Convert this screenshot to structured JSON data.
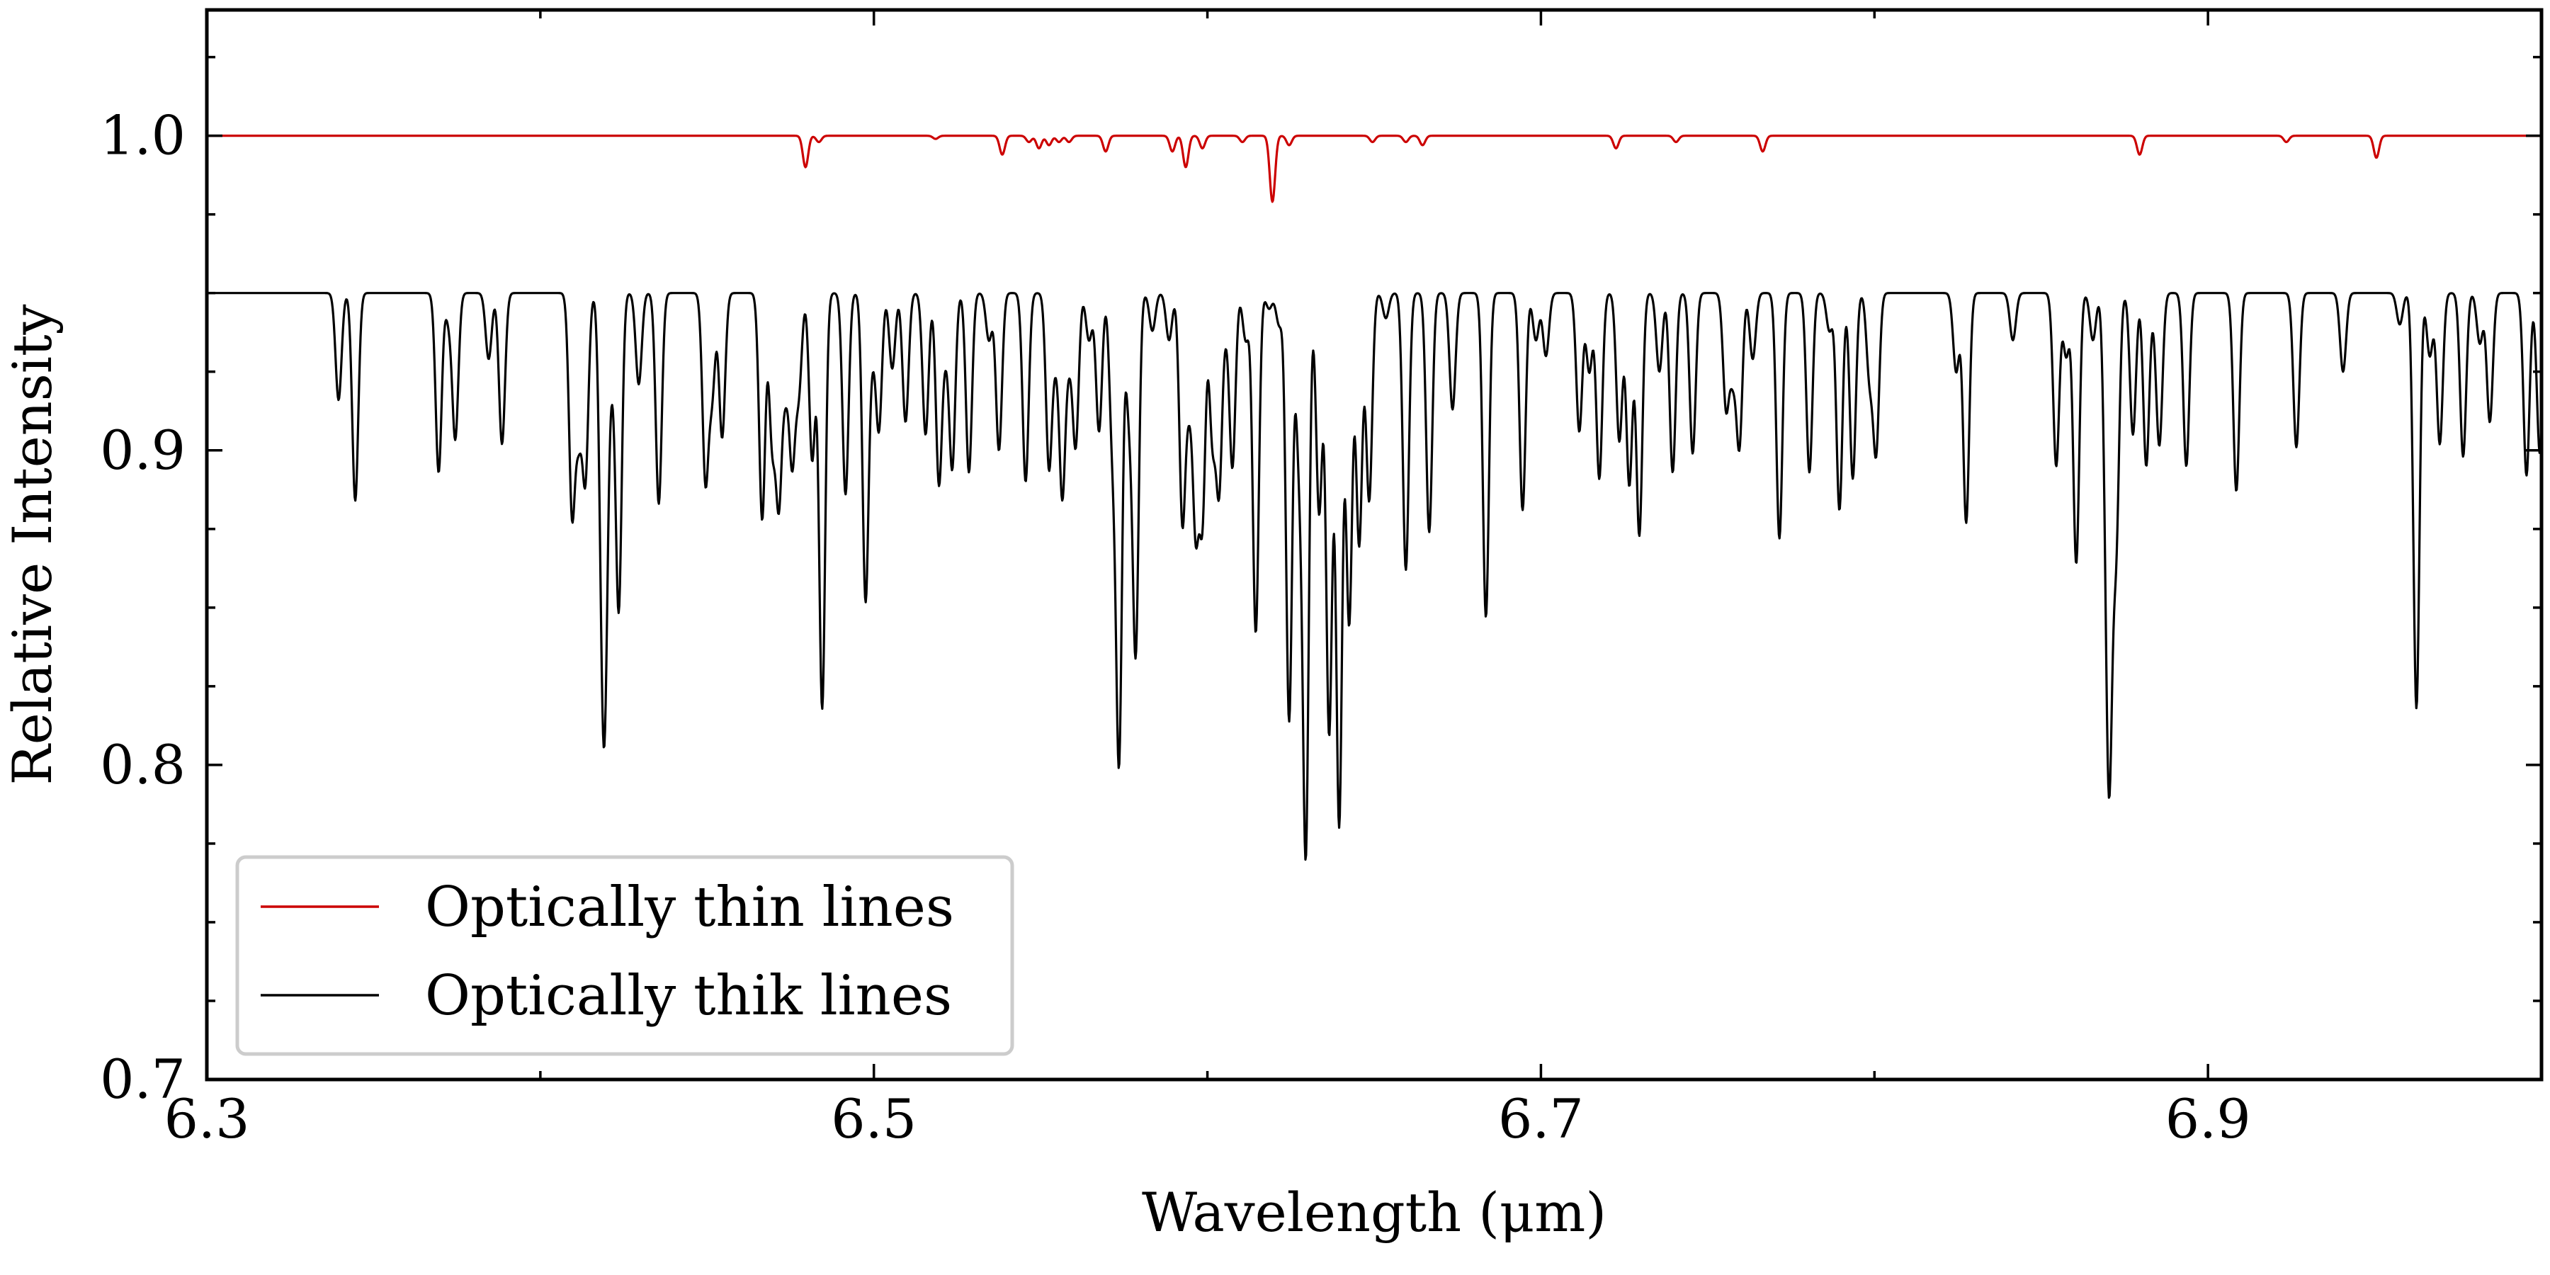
{
  "chart_data": {
    "type": "line",
    "title": "",
    "xlabel": "Wavelength (μm)",
    "ylabel": "Relative Intensity",
    "xlim": [
      6.3,
      7.0
    ],
    "ylim": [
      0.7,
      1.04
    ],
    "xticks": [
      {
        "value": 6.3,
        "label": "6.3"
      },
      {
        "value": 6.5,
        "label": "6.5"
      },
      {
        "value": 6.7,
        "label": "6.7"
      },
      {
        "value": 6.9,
        "label": "6.9"
      }
    ],
    "yticks": [
      {
        "value": 0.7,
        "label": "0.7"
      },
      {
        "value": 0.8,
        "label": "0.8"
      },
      {
        "value": 0.9,
        "label": "0.9"
      },
      {
        "value": 1.0,
        "label": "1.0"
      }
    ],
    "legend_position": "lower-left",
    "series": [
      {
        "name": "Optically thin lines",
        "color": "#cc0000",
        "baseline": 1.0,
        "line_width": 0.0008,
        "lines": [
          [
            6.4795,
            0.99
          ],
          [
            6.4835,
            0.998
          ],
          [
            6.5185,
            0.999
          ],
          [
            6.5385,
            0.994
          ],
          [
            6.5465,
            0.998
          ],
          [
            6.5495,
            0.996
          ],
          [
            6.5525,
            0.997
          ],
          [
            6.5555,
            0.998
          ],
          [
            6.5585,
            0.998
          ],
          [
            6.5695,
            0.995
          ],
          [
            6.5895,
            0.995
          ],
          [
            6.5935,
            0.99
          ],
          [
            6.5985,
            0.996
          ],
          [
            6.6105,
            0.998
          ],
          [
            6.6195,
            0.979
          ],
          [
            6.6245,
            0.997
          ],
          [
            6.6495,
            0.998
          ],
          [
            6.6595,
            0.998
          ],
          [
            6.6645,
            0.997
          ],
          [
            6.7225,
            0.996
          ],
          [
            6.7405,
            0.998
          ],
          [
            6.7665,
            0.995
          ],
          [
            6.8795,
            0.994
          ],
          [
            6.9235,
            0.998
          ],
          [
            6.9505,
            0.993
          ]
        ]
      },
      {
        "name": "Optically thik lines",
        "color": "#000000",
        "baseline": 0.95,
        "line_width": 0.0009,
        "lines": [
          [
            6.3395,
            0.916
          ],
          [
            6.3445,
            0.884
          ],
          [
            6.3695,
            0.893
          ],
          [
            6.3725,
            0.942
          ],
          [
            6.3745,
            0.904
          ],
          [
            6.3845,
            0.929
          ],
          [
            6.3885,
            0.902
          ],
          [
            6.4095,
            0.881
          ],
          [
            6.4115,
            0.909
          ],
          [
            6.4135,
            0.892
          ],
          [
            6.4185,
            0.874
          ],
          [
            6.4195,
            0.858
          ],
          [
            6.4215,
            0.931
          ],
          [
            6.4235,
            0.85
          ],
          [
            6.4295,
            0.921
          ],
          [
            6.4355,
            0.883
          ],
          [
            6.4495,
            0.891
          ],
          [
            6.4515,
            0.919
          ],
          [
            6.4545,
            0.904
          ],
          [
            6.4665,
            0.878
          ],
          [
            6.4695,
            0.904
          ],
          [
            6.4715,
            0.886
          ],
          [
            6.4735,
            0.923
          ],
          [
            6.4755,
            0.898
          ],
          [
            6.4775,
            0.92
          ],
          [
            6.4815,
            0.897
          ],
          [
            6.4845,
            0.818
          ],
          [
            6.4915,
            0.886
          ],
          [
            6.4975,
            0.853
          ],
          [
            6.4995,
            0.935
          ],
          [
            6.5015,
            0.907
          ],
          [
            6.5055,
            0.926
          ],
          [
            6.5095,
            0.909
          ],
          [
            6.5155,
            0.905
          ],
          [
            6.5195,
            0.89
          ],
          [
            6.5215,
            0.935
          ],
          [
            6.5235,
            0.895
          ],
          [
            6.5285,
            0.893
          ],
          [
            6.5345,
            0.935
          ],
          [
            6.5375,
            0.9
          ],
          [
            6.5455,
            0.89
          ],
          [
            6.5525,
            0.895
          ],
          [
            6.5545,
            0.933
          ],
          [
            6.5565,
            0.887
          ],
          [
            6.5585,
            0.932
          ],
          [
            6.5605,
            0.902
          ],
          [
            6.5645,
            0.935
          ],
          [
            6.5675,
            0.906
          ],
          [
            6.5715,
            0.905
          ],
          [
            6.5735,
            0.803
          ],
          [
            6.5765,
            0.915
          ],
          [
            6.5785,
            0.837
          ],
          [
            6.5835,
            0.938
          ],
          [
            6.5885,
            0.935
          ],
          [
            6.5925,
            0.878
          ],
          [
            6.5945,
            0.92
          ],
          [
            6.5965,
            0.878
          ],
          [
            6.5985,
            0.88
          ],
          [
            6.6015,
            0.905
          ],
          [
            6.6035,
            0.889
          ],
          [
            6.6055,
            0.942
          ],
          [
            6.6075,
            0.895
          ],
          [
            6.6115,
            0.935
          ],
          [
            6.6145,
            0.842
          ],
          [
            6.6185,
            0.945
          ],
          [
            6.6215,
            0.94
          ],
          [
            6.6245,
            0.814
          ],
          [
            6.6275,
            0.901
          ],
          [
            6.6295,
            0.774
          ],
          [
            6.6335,
            0.88
          ],
          [
            6.6365,
            0.81
          ],
          [
            6.6395,
            0.781
          ],
          [
            6.6425,
            0.845
          ],
          [
            6.6455,
            0.87
          ],
          [
            6.6485,
            0.884
          ],
          [
            6.6535,
            0.942
          ],
          [
            6.6595,
            0.862
          ],
          [
            6.6665,
            0.874
          ],
          [
            6.6735,
            0.913
          ],
          [
            6.6835,
            0.847
          ],
          [
            6.6945,
            0.881
          ],
          [
            6.6985,
            0.935
          ],
          [
            6.7015,
            0.93
          ],
          [
            6.7115,
            0.906
          ],
          [
            6.7145,
            0.925
          ],
          [
            6.7175,
            0.891
          ],
          [
            6.7235,
            0.903
          ],
          [
            6.7265,
            0.889
          ],
          [
            6.7295,
            0.873
          ],
          [
            6.7355,
            0.925
          ],
          [
            6.7395,
            0.893
          ],
          [
            6.7455,
            0.899
          ],
          [
            6.7555,
            0.914
          ],
          [
            6.7575,
            0.926
          ],
          [
            6.7595,
            0.902
          ],
          [
            6.7635,
            0.929
          ],
          [
            6.7715,
            0.872
          ],
          [
            6.7805,
            0.893
          ],
          [
            6.7865,
            0.938
          ],
          [
            6.7895,
            0.881
          ],
          [
            6.7935,
            0.891
          ],
          [
            6.7985,
            0.924
          ],
          [
            6.8005,
            0.9
          ],
          [
            6.8245,
            0.925
          ],
          [
            6.8275,
            0.877
          ],
          [
            6.8415,
            0.935
          ],
          [
            6.8545,
            0.895
          ],
          [
            6.8575,
            0.93
          ],
          [
            6.8605,
            0.864
          ],
          [
            6.8655,
            0.935
          ],
          [
            6.8695,
            0.903
          ],
          [
            6.8705,
            0.822
          ],
          [
            6.8725,
            0.874
          ],
          [
            6.8775,
            0.905
          ],
          [
            6.8815,
            0.895
          ],
          [
            6.8845,
            0.942
          ],
          [
            6.8855,
            0.906
          ],
          [
            6.8935,
            0.895
          ],
          [
            6.9085,
            0.887
          ],
          [
            6.9265,
            0.901
          ],
          [
            6.9405,
            0.925
          ],
          [
            6.9575,
            0.94
          ],
          [
            6.9625,
            0.818
          ],
          [
            6.9665,
            0.93
          ],
          [
            6.9695,
            0.902
          ],
          [
            6.9765,
            0.898
          ],
          [
            6.9815,
            0.934
          ],
          [
            6.9845,
            0.909
          ],
          [
            6.9955,
            0.892
          ],
          [
            6.9995,
            0.899
          ]
        ]
      }
    ]
  }
}
